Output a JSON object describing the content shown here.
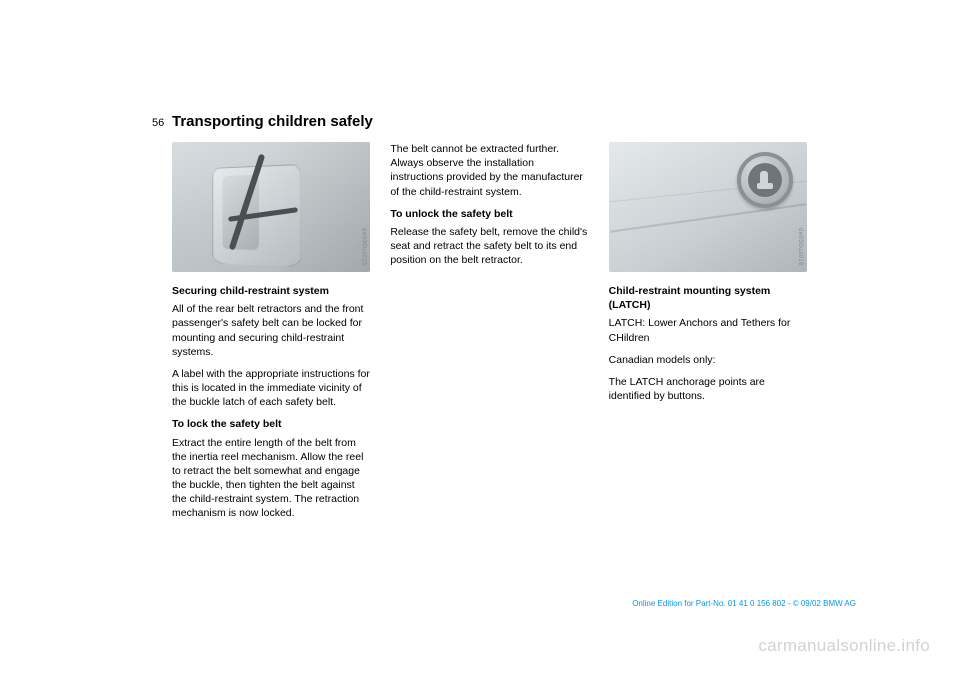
{
  "page_number": "56",
  "page_title": "Transporting children safely",
  "col1": {
    "fig_code": "de030us015",
    "h1": "Securing child-restraint system",
    "p1": "All of the rear belt retractors and the front passenger's safety belt can be locked for mounting and securing child-restraint systems.",
    "p2": "A label with the appropriate instructions for this is located in the immediate vicinity of the buckle latch of each safety belt.",
    "h2": "To lock the safety belt",
    "p3": "Extract the entire length of the belt from the inertia reel mechanism. Allow the reel to retract the belt somewhat and engage the buckle, then tighten the belt against the child-restraint system. The retraction mechanism is now locked."
  },
  "col2": {
    "p1": "The belt cannot be extracted further. Always observe the installation instructions provided by the manufacturer of the child-restraint system.",
    "h1": "To unlock the safety belt",
    "p2": "Release the safety belt, remove the child's seat and retract the safety belt to its end position on the belt retractor."
  },
  "col3": {
    "fig_code": "de030us016",
    "h1": "Child-restraint mounting system (LATCH)",
    "p1": "LATCH: Lower Anchors and Tethers for CHildren",
    "p2": "Canadian models only:",
    "p3": "The LATCH anchorage points are identified by buttons."
  },
  "footer": "Online Edition for Part-No. 01 41 0 156 802 - © 09/02 BMW AG",
  "watermark": "carmanualsonline.info"
}
